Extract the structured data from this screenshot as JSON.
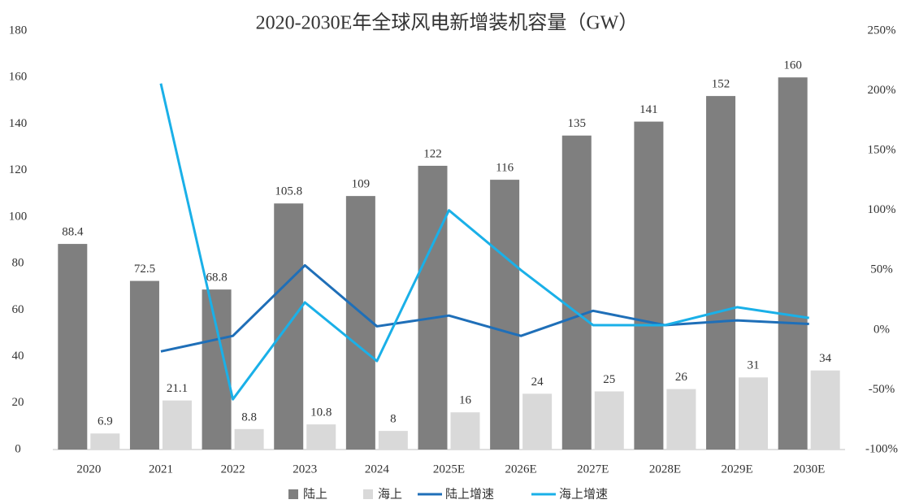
{
  "chart_data": {
    "type": "bar_line",
    "title": "2020-2030E年全球风电新增装机容量（GW）",
    "categories": [
      "2020",
      "2021",
      "2022",
      "2023",
      "2024",
      "2025E",
      "2026E",
      "2027E",
      "2028E",
      "2029E",
      "2030E"
    ],
    "series": [
      {
        "name": "陆上",
        "type": "bar",
        "color": "#7f7f7f",
        "values": [
          88.4,
          72.5,
          68.8,
          105.8,
          109,
          122,
          116,
          135,
          141,
          152,
          160
        ]
      },
      {
        "name": "海上",
        "type": "bar",
        "color": "#d9d9d9",
        "values": [
          6.9,
          21.1,
          8.8,
          10.8,
          8,
          16,
          24,
          25,
          26,
          31,
          34
        ]
      },
      {
        "name": "陆上增速",
        "type": "line",
        "axis": "y2",
        "color": "#1f6fb8",
        "values": [
          null,
          -18,
          -5,
          54,
          3,
          12,
          -5,
          16,
          4,
          8,
          5
        ]
      },
      {
        "name": "海上增速",
        "type": "line",
        "axis": "y2",
        "color": "#1ab0e8",
        "values": [
          null,
          206,
          -58,
          23,
          -26,
          100,
          50,
          4,
          4,
          19,
          10
        ]
      }
    ],
    "ylim": [
      0,
      180
    ],
    "yticks": [
      0,
      20,
      40,
      60,
      80,
      100,
      120,
      140,
      160,
      180
    ],
    "y2lim": [
      -100,
      250
    ],
    "y2ticks": [
      {
        "value": -100,
        "label": "-100%"
      },
      {
        "value": -50,
        "label": "-50%"
      },
      {
        "value": 0,
        "label": "0%"
      },
      {
        "value": 50,
        "label": "50%"
      },
      {
        "value": 100,
        "label": "100%"
      },
      {
        "value": 150,
        "label": "150%"
      },
      {
        "value": 200,
        "label": "200%"
      },
      {
        "value": 250,
        "label": "250%"
      }
    ],
    "grid": false,
    "legend": "bottom"
  }
}
